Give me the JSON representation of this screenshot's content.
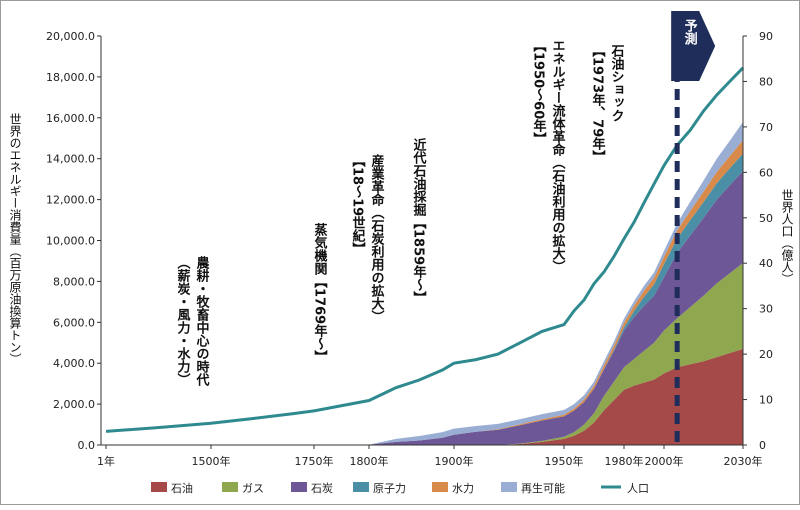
{
  "chart_data": {
    "type": "area",
    "ylabel_left": "世界のエネルギー消費量（百万原油換算トン）",
    "ylabel_right": "世界人口（億人）",
    "ylim_left": [
      0,
      20000
    ],
    "ylim_right": [
      0,
      90
    ],
    "y_ticks_left": [
      "0.0",
      "2,000.0",
      "4,000.0",
      "6,000.0",
      "8,000.0",
      "10,000.0",
      "12,000.0",
      "14,000.0",
      "16,000.0",
      "18,000.0",
      "20,000.0"
    ],
    "y_ticks_right": [
      "0",
      "10",
      "20",
      "30",
      "40",
      "50",
      "60",
      "70",
      "80",
      "90"
    ],
    "x_ticks": [
      {
        "x": 1,
        "label": "1年"
      },
      {
        "x": 1500,
        "label": "1500年"
      },
      {
        "x": 1750,
        "label": "1750年"
      },
      {
        "x": 1800,
        "label": "1800年"
      },
      {
        "x": 1900,
        "label": "1900年"
      },
      {
        "x": 1950,
        "label": "1950年"
      },
      {
        "x": 1980,
        "label": "1980年"
      },
      {
        "x": 2000,
        "label": "2000年"
      },
      {
        "x": 2030,
        "label": "2030年"
      }
    ],
    "forecast_label": "予測",
    "forecast_start": 2005,
    "x_index": [
      "1",
      "1000",
      "1500",
      "1600",
      "1700",
      "1750",
      "1800",
      "1850",
      "1870",
      "1890",
      "1900",
      "1910",
      "1920",
      "1930",
      "1940",
      "1950",
      "1955",
      "1960",
      "1965",
      "1970",
      "1975",
      "1980",
      "1985",
      "1990",
      "1995",
      "2000",
      "2005",
      "2010",
      "2015",
      "2020",
      "2025",
      "2030"
    ],
    "series": [
      {
        "name": "石油",
        "color": "#a54a48",
        "values": [
          0,
          0,
          0,
          0,
          0,
          0,
          0,
          0,
          0,
          0,
          0,
          0,
          0,
          50,
          150,
          300,
          450,
          700,
          1100,
          1700,
          2200,
          2700,
          2900,
          3050,
          3200,
          3500,
          3800,
          3950,
          4100,
          4300,
          4500,
          4700
        ]
      },
      {
        "name": "ガス",
        "color": "#8fa84f",
        "values": [
          0,
          0,
          0,
          0,
          0,
          0,
          0,
          0,
          0,
          0,
          0,
          0,
          0,
          20,
          50,
          100,
          180,
          300,
          450,
          700,
          900,
          1100,
          1300,
          1550,
          1800,
          2100,
          2400,
          2800,
          3200,
          3600,
          3900,
          4200
        ]
      },
      {
        "name": "石炭",
        "color": "#6e5796",
        "values": [
          0,
          0,
          0,
          0,
          0,
          0,
          20,
          150,
          220,
          350,
          500,
          650,
          750,
          900,
          1000,
          1000,
          1050,
          1100,
          1200,
          1300,
          1500,
          1800,
          2050,
          2200,
          2300,
          2600,
          3200,
          3500,
          3800,
          4100,
          4300,
          4500
        ]
      },
      {
        "name": "原子力",
        "color": "#4a8fa5",
        "values": [
          0,
          0,
          0,
          0,
          0,
          0,
          0,
          0,
          0,
          0,
          0,
          0,
          0,
          0,
          0,
          0,
          0,
          0,
          0,
          20,
          60,
          150,
          300,
          450,
          550,
          650,
          700,
          750,
          780,
          800,
          830,
          850
        ]
      },
      {
        "name": "水力",
        "color": "#d88a4a",
        "values": [
          0,
          0,
          0,
          0,
          0,
          0,
          0,
          0,
          0,
          0,
          0,
          0,
          20,
          40,
          60,
          80,
          100,
          120,
          150,
          180,
          200,
          230,
          260,
          290,
          320,
          360,
          400,
          450,
          500,
          550,
          600,
          650
        ]
      },
      {
        "name": "再生可能",
        "color": "#9aaed4",
        "values": [
          0,
          0,
          0,
          0,
          0,
          0,
          0,
          150,
          220,
          280,
          300,
          280,
          260,
          250,
          250,
          230,
          220,
          210,
          200,
          200,
          200,
          200,
          220,
          240,
          260,
          280,
          350,
          450,
          550,
          650,
          750,
          900
        ]
      }
    ],
    "population": {
      "name": "人口",
      "color": "#2e8a8e",
      "values": [
        3.0,
        3.8,
        4.8,
        5.8,
        6.9,
        7.5,
        9.8,
        12.6,
        14.3,
        16.5,
        18.0,
        18.8,
        20.0,
        22.5,
        25.0,
        26.5,
        29.5,
        31.9,
        35.5,
        38.1,
        41.5,
        45.4,
        49.0,
        53.3,
        57.4,
        61.5,
        66.0,
        69.3,
        73.5,
        77.0,
        80.0,
        83.0
      ]
    },
    "annotations": [
      {
        "id": "agri",
        "lines": [
          "農耕・牧畜中心の時代",
          "（薪炭・風力・水力）"
        ]
      },
      {
        "id": "steam",
        "lines": [
          "蒸気機関【1769年〜】"
        ]
      },
      {
        "id": "industrial",
        "lines": [
          "産業革命（石炭利用の拡大）",
          "【18〜19世紀】"
        ]
      },
      {
        "id": "oilmining",
        "lines": [
          "近代石油採掘【1859年〜】"
        ]
      },
      {
        "id": "fluid",
        "lines": [
          "エネルギー流体革命（石油利用の拡大）",
          "【1950〜60年】"
        ]
      },
      {
        "id": "oilshock",
        "lines": [
          "石油ショック",
          "【1973年、79年】"
        ]
      }
    ],
    "legend": [
      "石油",
      "ガス",
      "石炭",
      "原子力",
      "水力",
      "再生可能",
      "人口"
    ]
  }
}
